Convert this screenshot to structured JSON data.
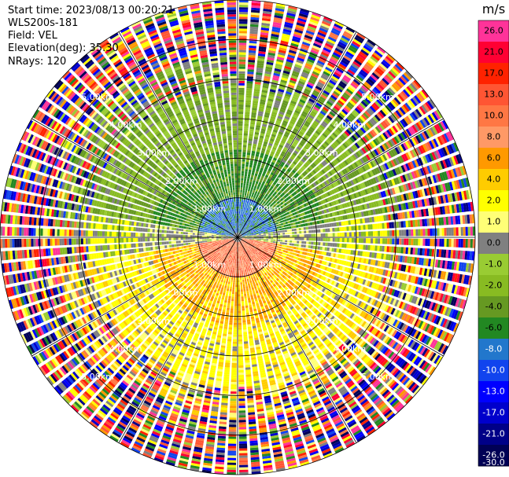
{
  "header": {
    "start_time_label": "Start time: 2023/08/13 00:20:21",
    "instrument": "WLS200s-181",
    "field_label": "Field: VEL",
    "elevation_label": "Elevation(deg): 35.30",
    "nrays_label": "NRays: 120"
  },
  "chart_data": {
    "type": "heatmap",
    "projection": "polar-ppi",
    "title": "",
    "field": "VEL",
    "units": "m/s",
    "elevation_deg": 35.3,
    "n_rays": 120,
    "range_max_km": 6.0,
    "range_rings_km": [
      1.0,
      2.0,
      3.0,
      4.0,
      5.0,
      6.0
    ],
    "ring_labels": [
      "1.00km",
      "2.00km",
      "3.00km",
      "4.00km",
      "5.00km"
    ],
    "spokes_deg": [
      0,
      30,
      60,
      90,
      120,
      150,
      180,
      210,
      240,
      270,
      300,
      330
    ],
    "colorbar": {
      "unit_label": "m/s",
      "ticks": [
        "26.0",
        "21.0",
        "17.0",
        "13.0",
        "10.0",
        "8.0",
        "6.0",
        "4.0",
        "2.0",
        "1.0",
        "0.0",
        "-1.0",
        "-2.0",
        "-4.0",
        "-6.0",
        "-8.0",
        "-10.0",
        "-13.0",
        "-17.0",
        "-21.0",
        "-26.0",
        "-30.0"
      ],
      "bins": [
        {
          "label": "26.0",
          "color": "#ff3399"
        },
        {
          "label": "21.0",
          "color": "#ff0033"
        },
        {
          "label": "17.0",
          "color": "#ff2200"
        },
        {
          "label": "13.0",
          "color": "#ff5533"
        },
        {
          "label": "10.0",
          "color": "#ff7744"
        },
        {
          "label": "8.0",
          "color": "#ff9966"
        },
        {
          "label": "6.0",
          "color": "#ff9900"
        },
        {
          "label": "4.0",
          "color": "#ffcc00"
        },
        {
          "label": "2.0",
          "color": "#ffff00"
        },
        {
          "label": "1.0",
          "color": "#ffff77"
        },
        {
          "label": "0.0",
          "color": "#808080"
        },
        {
          "label": "-1.0",
          "color": "#99cc33"
        },
        {
          "label": "-2.0",
          "color": "#88bb22"
        },
        {
          "label": "-4.0",
          "color": "#669922"
        },
        {
          "label": "-6.0",
          "color": "#228822"
        },
        {
          "label": "-8.0",
          "color": "#2277cc"
        },
        {
          "label": "-10.0",
          "color": "#1144ee"
        },
        {
          "label": "-13.0",
          "color": "#0000ff"
        },
        {
          "label": "-17.0",
          "color": "#0000cc"
        },
        {
          "label": "-21.0",
          "color": "#000088"
        },
        {
          "label": "-26.0",
          "color": "#000055"
        }
      ]
    },
    "velocity_pattern": {
      "receding_sector": "north (upper half)",
      "approaching_sector": "south (lower half)",
      "near_range_north_m_s": -8.0,
      "near_range_south_m_s": 10.0,
      "mid_range_north_m_s": -4.0,
      "mid_range_south_m_s": 4.0,
      "far_range": "noisy, mixed values"
    }
  }
}
